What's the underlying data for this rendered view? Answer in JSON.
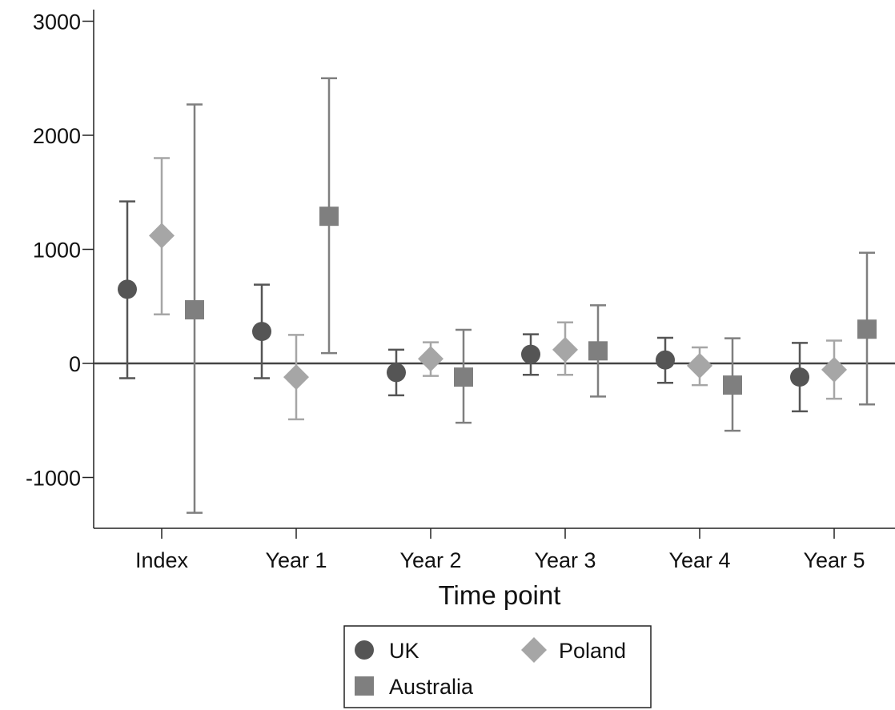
{
  "chart_data": {
    "type": "scatter",
    "xlabel": "Time point",
    "ylabel": "",
    "categories": [
      "Index",
      "Year 1",
      "Year 2",
      "Year 3",
      "Year 4",
      "Year 5"
    ],
    "ylim": [
      -1450,
      3100
    ],
    "yticks": [
      -1000,
      0,
      1000,
      2000,
      3000
    ],
    "ytick_labels": [
      "-1000",
      "0",
      "1000",
      "2000",
      "3000"
    ],
    "reference_line": 0,
    "grid": false,
    "legend_position": "bottom",
    "series": [
      {
        "name": "UK",
        "marker": "circle",
        "color": "#555555",
        "points": [
          {
            "category": "Index",
            "value": 650,
            "lower": -130,
            "upper": 1420
          },
          {
            "category": "Year 1",
            "value": 280,
            "lower": -130,
            "upper": 690
          },
          {
            "category": "Year 2",
            "value": -80,
            "lower": -280,
            "upper": 120
          },
          {
            "category": "Year 3",
            "value": 80,
            "lower": -100,
            "upper": 255
          },
          {
            "category": "Year 4",
            "value": 30,
            "lower": -170,
            "upper": 225
          },
          {
            "category": "Year 5",
            "value": -120,
            "lower": -420,
            "upper": 180
          }
        ]
      },
      {
        "name": "Poland",
        "marker": "diamond",
        "color": "#a6a6a6",
        "points": [
          {
            "category": "Index",
            "value": 1120,
            "lower": 430,
            "upper": 1800
          },
          {
            "category": "Year 1",
            "value": -120,
            "lower": -490,
            "upper": 250
          },
          {
            "category": "Year 2",
            "value": 40,
            "lower": -110,
            "upper": 185
          },
          {
            "category": "Year 3",
            "value": 120,
            "lower": -100,
            "upper": 360
          },
          {
            "category": "Year 4",
            "value": -20,
            "lower": -190,
            "upper": 140
          },
          {
            "category": "Year 5",
            "value": -55,
            "lower": -310,
            "upper": 200
          }
        ]
      },
      {
        "name": "Australia",
        "marker": "square",
        "color": "#7f7f7f",
        "points": [
          {
            "category": "Index",
            "value": 470,
            "lower": -1310,
            "upper": 2270
          },
          {
            "category": "Year 1",
            "value": 1290,
            "lower": 90,
            "upper": 2500
          },
          {
            "category": "Year 2",
            "value": -120,
            "lower": -520,
            "upper": 295
          },
          {
            "category": "Year 3",
            "value": 110,
            "lower": -290,
            "upper": 510
          },
          {
            "category": "Year 4",
            "value": -190,
            "lower": -590,
            "upper": 220
          },
          {
            "category": "Year 5",
            "value": 300,
            "lower": -360,
            "upper": 970
          }
        ]
      }
    ]
  }
}
